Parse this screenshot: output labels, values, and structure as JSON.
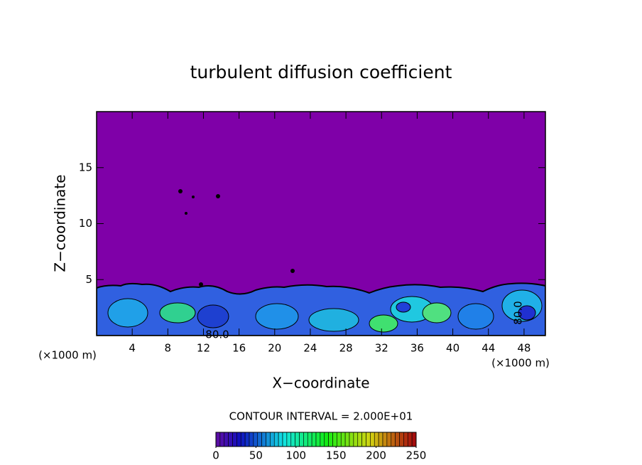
{
  "chart_data": {
    "type": "contour",
    "title": "turbulent diffusion coefficient",
    "x_label": "X−coordinate",
    "y_label": "Z−coordinate",
    "x_unit": "(×1000 m)",
    "y_unit": "(×1000 m)",
    "xlim": [
      0,
      50.4
    ],
    "xticks": [
      4,
      8,
      12,
      16,
      20,
      24,
      28,
      32,
      36,
      40,
      44,
      48
    ],
    "ylim": [
      0,
      20
    ],
    "yticks": [
      5,
      10,
      15
    ],
    "contour_labels": [
      "80.0",
      "80.0"
    ],
    "annotation": "CONTOUR INTERVAL = 2.000E+01",
    "colorbar": {
      "lim": [
        0,
        250
      ],
      "ticks": [
        0,
        50,
        100,
        150,
        200,
        250
      ]
    }
  }
}
